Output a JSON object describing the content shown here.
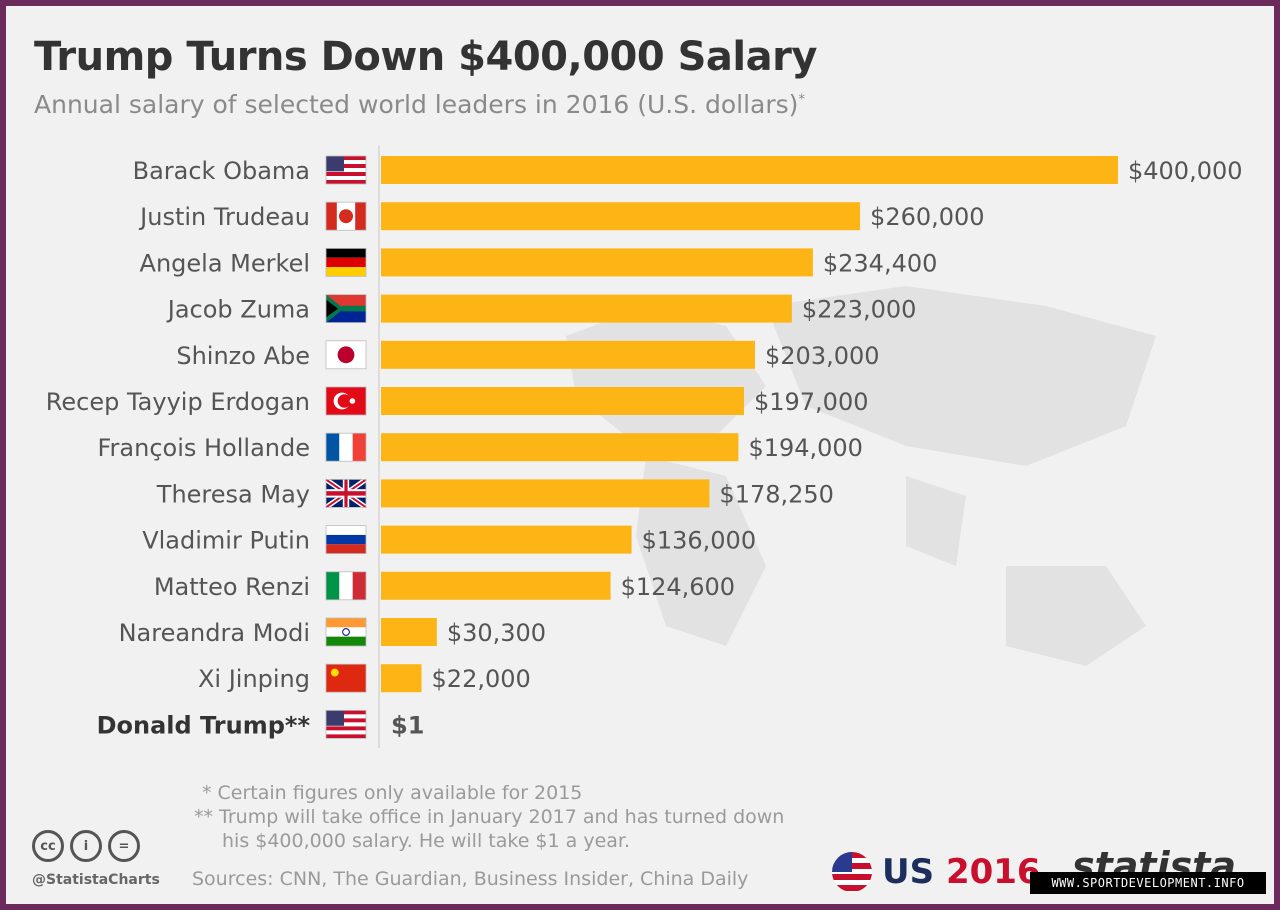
{
  "chart_data": {
    "type": "bar",
    "title": "Trump Turns Down $400,000 Salary",
    "subtitle": "Annual salary of selected world leaders in 2016 (U.S. dollars)",
    "subtitle_mark": "*",
    "categories": [
      "Barack Obama",
      "Justin Trudeau",
      "Angela Merkel",
      "Jacob Zuma",
      "Shinzo Abe",
      "Recep Tayyip Erdogan",
      "François Hollande",
      "Theresa May",
      "Vladimir Putin",
      "Matteo Renzi",
      "Nareandra Modi",
      "Xi Jinping",
      "Donald Trump**"
    ],
    "values": [
      400000,
      260000,
      234400,
      223000,
      203000,
      197000,
      194000,
      178250,
      136000,
      124600,
      30300,
      22000,
      1
    ],
    "value_labels": [
      "$400,000",
      "$260,000",
      "$234,400",
      "$223,000",
      "$203,000",
      "$197,000",
      "$194,000",
      "$178,250",
      "$136,000",
      "$124,600",
      "$30,300",
      "$22,000",
      "$1"
    ],
    "flags": [
      "us",
      "canada",
      "germany",
      "south-africa",
      "japan",
      "turkey",
      "france",
      "uk",
      "russia",
      "italy",
      "india",
      "china",
      "us"
    ],
    "bold_categories": [
      "Donald Trump**"
    ],
    "xlim": [
      0,
      400000
    ],
    "bar_color": "#fdb515"
  },
  "notes": {
    "note1": "*   Certain figures only available for 2015",
    "note2": "** Trump will take office in January 2017 and has turned down",
    "note3": "his $400,000 salary. He will take $1 a year."
  },
  "footer": {
    "handle": "@StatistaCharts",
    "sources": "Sources: CNN, The Guardian, Business Insider, China Daily",
    "us_logo_prefix": "US ",
    "us_logo_year": "2016",
    "brand": "statista",
    "watermark": "WWW.SPORTDEVELOPMENT.INFO",
    "cc_labels": [
      "cc",
      "i",
      "="
    ]
  }
}
